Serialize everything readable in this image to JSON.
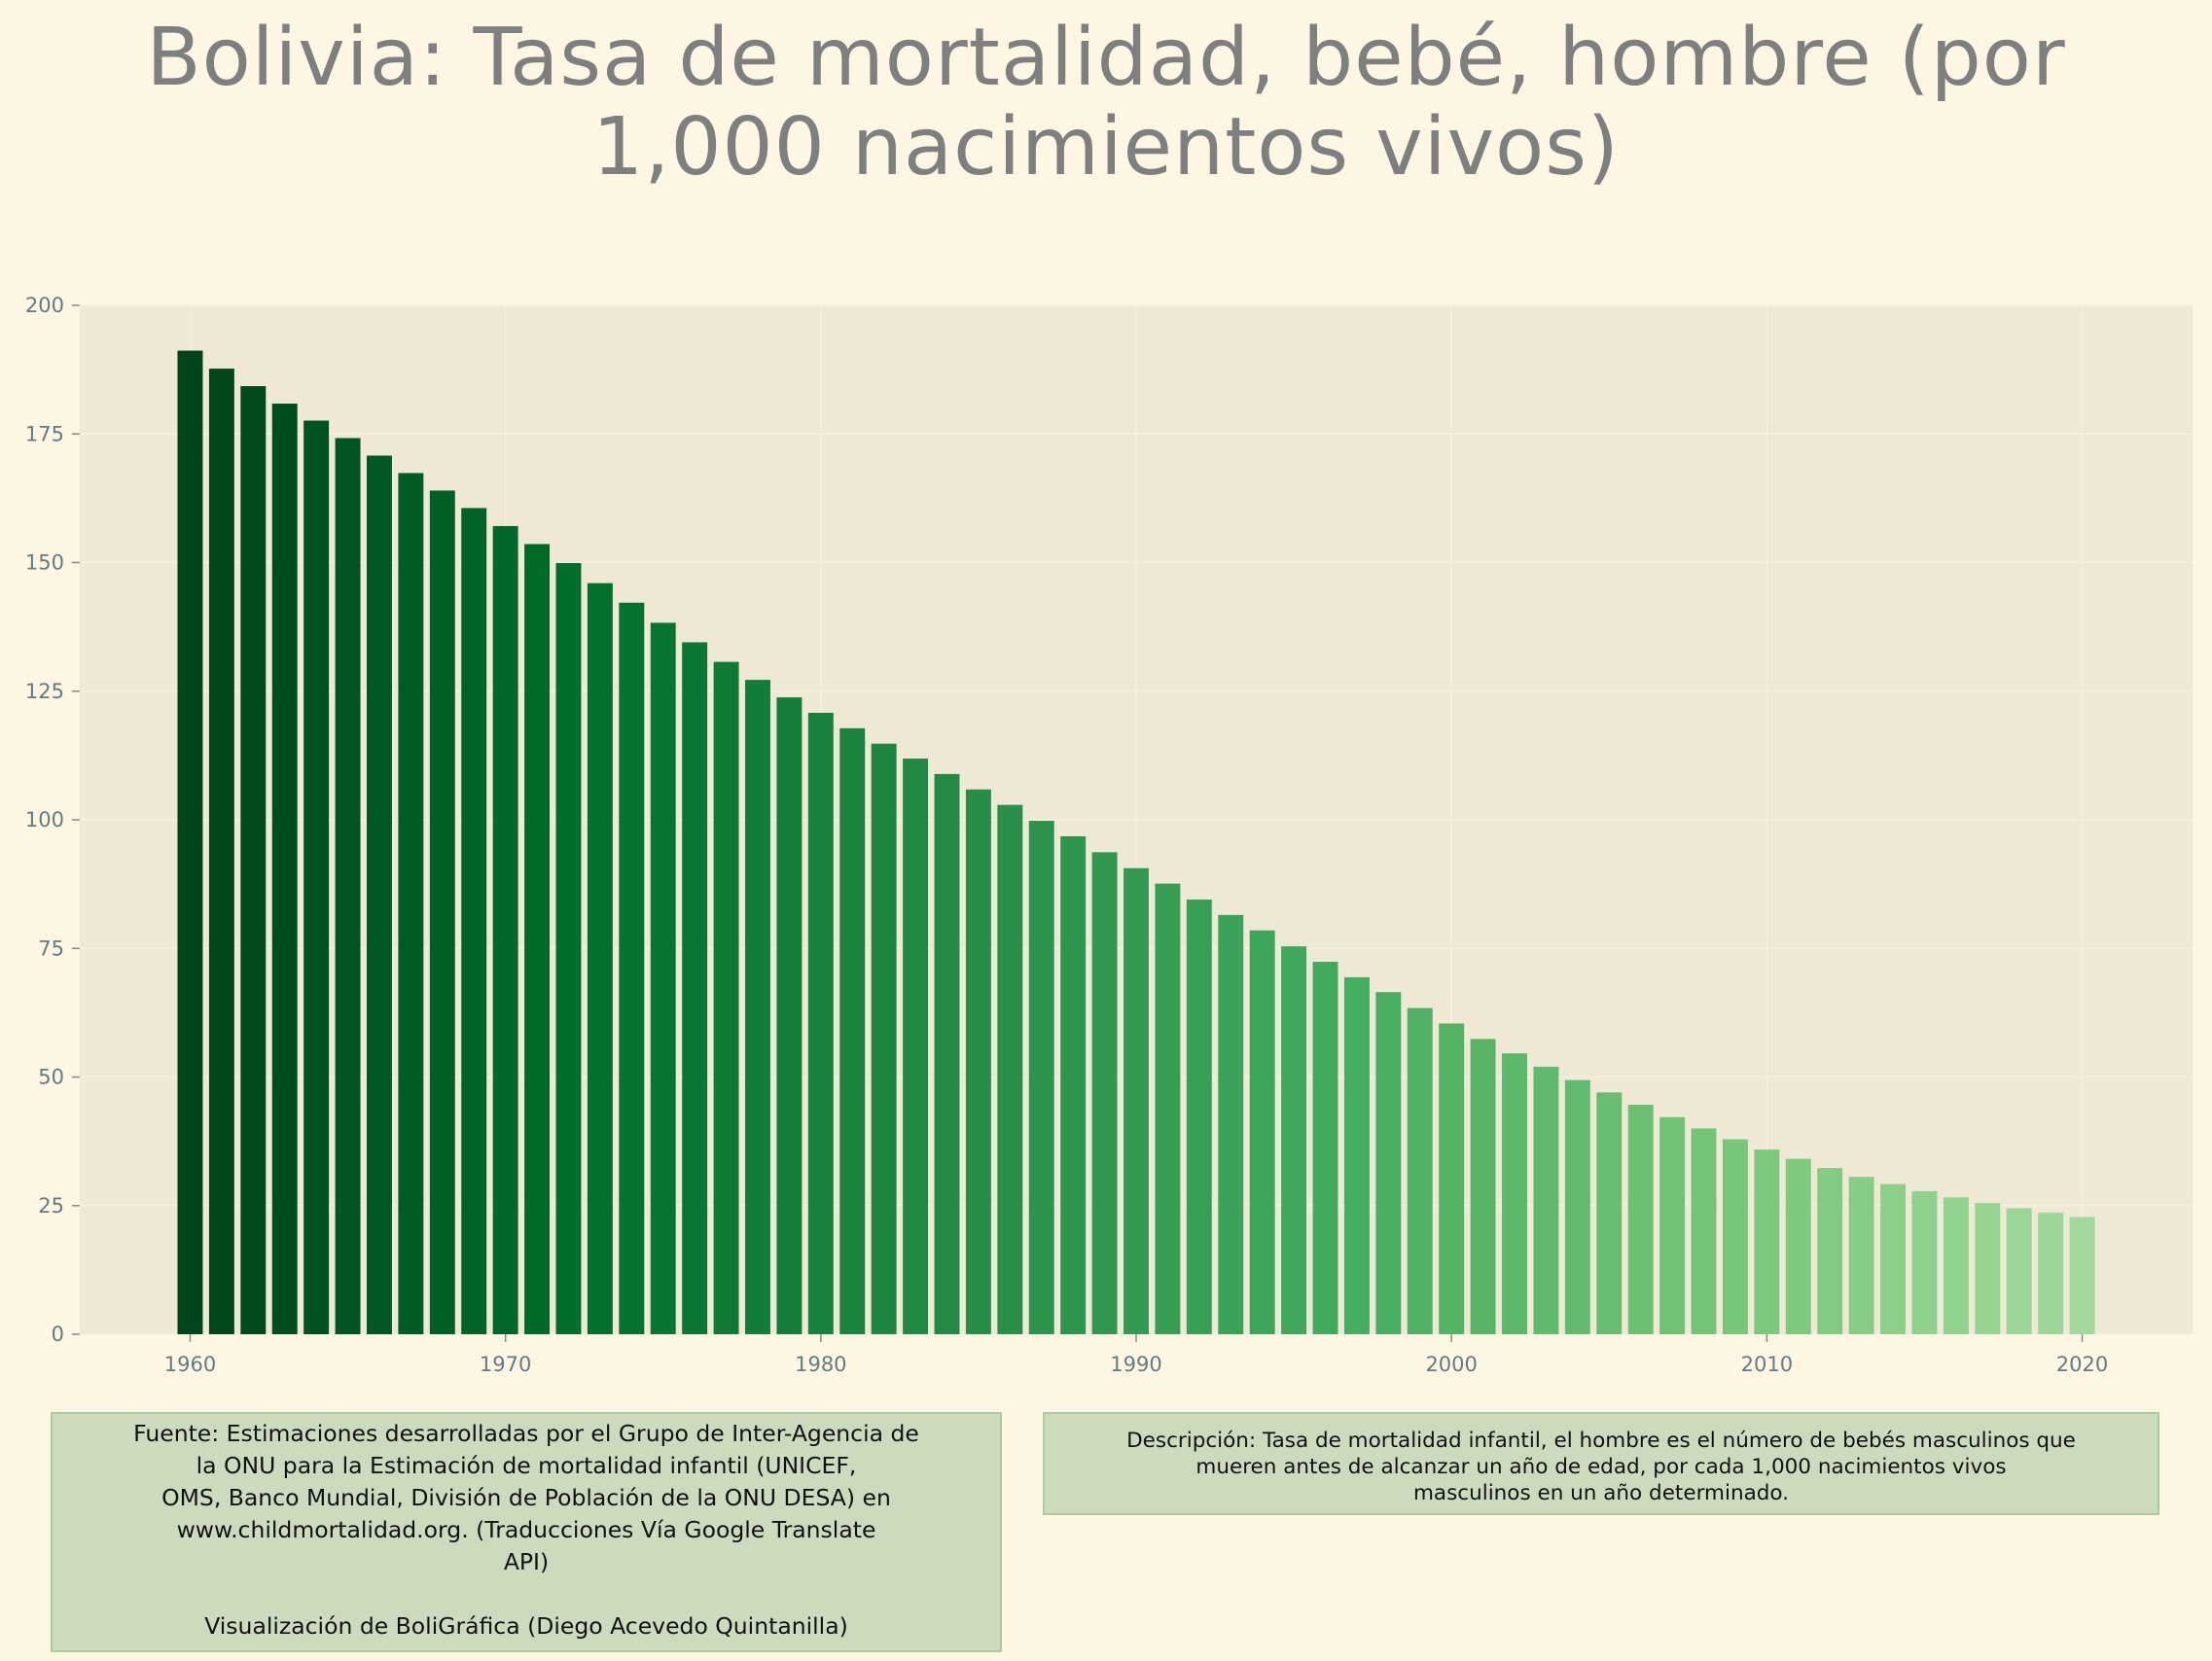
{
  "chart_data": {
    "type": "bar",
    "title": "Bolivia:  Tasa de mortalidad, bebé, hombre (por\n1,000 nacimientos vivos)",
    "xlabel": "",
    "ylabel": "",
    "xlim": [
      1956.5,
      2023.5
    ],
    "ylim": [
      0,
      200
    ],
    "x_ticks": [
      1960,
      1970,
      1980,
      1990,
      2000,
      2010,
      2020
    ],
    "y_ticks": [
      0,
      25,
      50,
      75,
      100,
      125,
      150,
      175,
      200
    ],
    "grid": true,
    "legend": "none",
    "x": [
      1960,
      1961,
      1962,
      1963,
      1964,
      1965,
      1966,
      1967,
      1968,
      1969,
      1970,
      1971,
      1972,
      1973,
      1974,
      1975,
      1976,
      1977,
      1978,
      1979,
      1980,
      1981,
      1982,
      1983,
      1984,
      1985,
      1986,
      1987,
      1988,
      1989,
      1990,
      1991,
      1992,
      1993,
      1994,
      1995,
      1996,
      1997,
      1998,
      1999,
      2000,
      2001,
      2002,
      2003,
      2004,
      2005,
      2006,
      2007,
      2008,
      2009,
      2010,
      2011,
      2012,
      2013,
      2014,
      2015,
      2016,
      2017,
      2018,
      2019,
      2020
    ],
    "values": [
      191.2,
      187.7,
      184.3,
      180.9,
      177.6,
      174.2,
      170.8,
      167.4,
      164.0,
      160.6,
      157.1,
      153.6,
      149.9,
      146.0,
      142.2,
      138.3,
      134.5,
      130.7,
      127.2,
      123.8,
      120.8,
      117.8,
      114.8,
      111.9,
      108.9,
      105.9,
      102.9,
      99.8,
      96.8,
      93.7,
      90.6,
      87.6,
      84.5,
      81.5,
      78.5,
      75.4,
      72.4,
      69.4,
      66.5,
      63.4,
      60.4,
      57.4,
      54.6,
      52.0,
      49.4,
      47.0,
      44.6,
      42.2,
      40.0,
      37.9,
      35.9,
      34.1,
      32.3,
      30.6,
      29.2,
      27.8,
      26.6,
      25.5,
      24.5,
      23.6,
      22.8
    ],
    "color_start": "#00441b",
    "color_end": "#a1d99b",
    "plot_background": "#eee8d5",
    "page_background": "#fdf6e3"
  },
  "notes": {
    "source": "Fuente: Estimaciones desarrolladas por el Grupo de Inter-Agencia de\nla ONU para la Estimación de mortalidad infantil (UNICEF,\nOMS, Banco Mundial, División de Población de la ONU DESA) en\nwww.childmortalidad.org. (Traducciones Vía Google Translate\nAPI)\n\nVisualización de BoliGráfica (Diego Acevedo Quintanilla)",
    "description": "Descripción: Tasa de mortalidad infantil, el hombre es el número de bebés masculinos que\nmueren antes de alcanzar un año de edad, por cada 1,000 nacimientos vivos\nmasculinos en un año determinado."
  }
}
